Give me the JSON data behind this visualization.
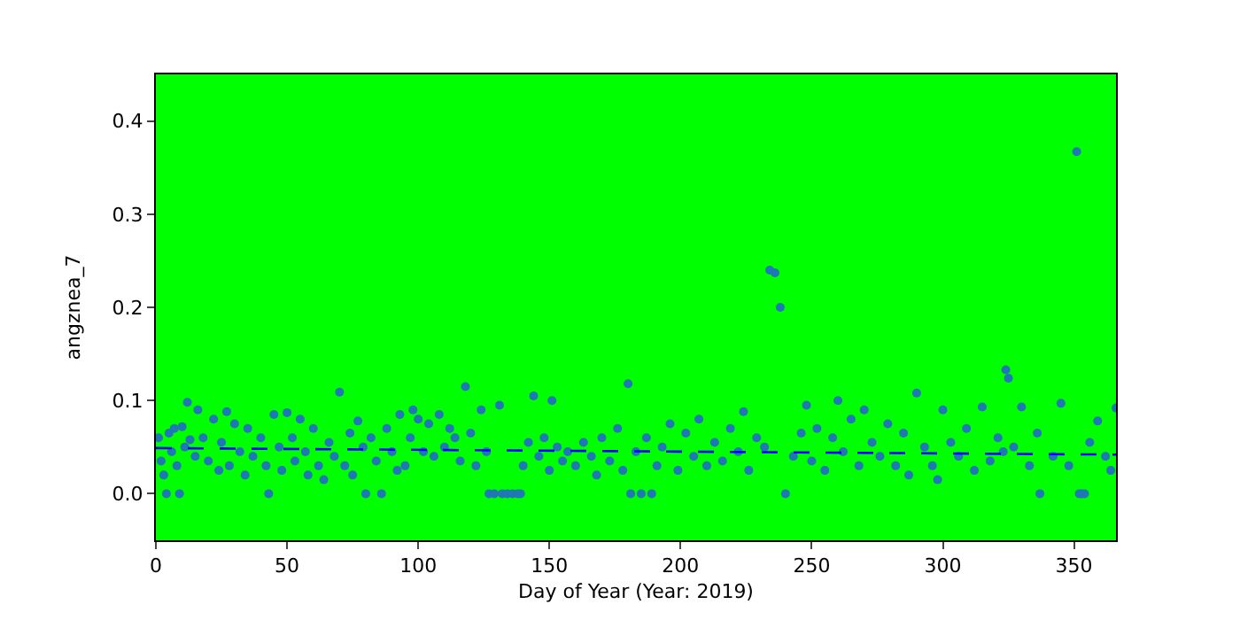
{
  "chart_data": {
    "type": "scatter",
    "xlabel": "Day of Year (Year: 2019)",
    "ylabel": "angznea_7",
    "xlim": [
      0,
      366
    ],
    "ylim": [
      -0.05,
      0.45
    ],
    "xticks": [
      0,
      50,
      100,
      150,
      200,
      250,
      300,
      350
    ],
    "yticks": [
      {
        "value": 0,
        "label": "0.0"
      },
      0.1,
      0.2,
      0.3,
      0.4
    ],
    "grid": false,
    "marker": "circle",
    "series": [
      {
        "color": "#1f77b4",
        "x": [
          1,
          2,
          3,
          4,
          5,
          6,
          7,
          8,
          9,
          10,
          11,
          12,
          13,
          15,
          16,
          18,
          20,
          22,
          24,
          25,
          27,
          28,
          30,
          32,
          34,
          35,
          37,
          40,
          42,
          43,
          45,
          47,
          48,
          50,
          52,
          53,
          55,
          57,
          58,
          60,
          62,
          64,
          66,
          68,
          70,
          72,
          74,
          75,
          77,
          79,
          80,
          82,
          84,
          86,
          88,
          90,
          92,
          93,
          95,
          97,
          98,
          100,
          102,
          104,
          106,
          108,
          110,
          112,
          114,
          116,
          118,
          120,
          122,
          124,
          126,
          127,
          129,
          131,
          132,
          134,
          136,
          138,
          139,
          140,
          142,
          144,
          146,
          148,
          150,
          151,
          153,
          155,
          157,
          160,
          163,
          166,
          168,
          170,
          173,
          176,
          178,
          180,
          181,
          183,
          185,
          187,
          189,
          191,
          193,
          196,
          199,
          202,
          205,
          207,
          210,
          213,
          216,
          219,
          222,
          224,
          226,
          229,
          232,
          234,
          236,
          238,
          240,
          243,
          246,
          248,
          250,
          252,
          255,
          258,
          260,
          262,
          265,
          268,
          270,
          273,
          276,
          279,
          282,
          285,
          287,
          290,
          293,
          296,
          298,
          300,
          303,
          306,
          309,
          312,
          315,
          318,
          321,
          323,
          324,
          325,
          327,
          330,
          333,
          336,
          337,
          342,
          345,
          348,
          351,
          352,
          353,
          354,
          356,
          359,
          362,
          364,
          366
        ],
        "values": [
          0.06,
          0.035,
          0.02,
          0.0,
          0.065,
          0.045,
          0.07,
          0.03,
          0.0,
          0.072,
          0.05,
          0.098,
          0.058,
          0.04,
          0.09,
          0.06,
          0.035,
          0.08,
          0.025,
          0.055,
          0.088,
          0.03,
          0.075,
          0.045,
          0.02,
          0.07,
          0.04,
          0.06,
          0.03,
          0.0,
          0.085,
          0.05,
          0.025,
          0.087,
          0.06,
          0.035,
          0.08,
          0.045,
          0.02,
          0.07,
          0.03,
          0.015,
          0.055,
          0.04,
          0.109,
          0.03,
          0.065,
          0.02,
          0.078,
          0.05,
          0.0,
          0.06,
          0.035,
          0.0,
          0.07,
          0.045,
          0.025,
          0.085,
          0.03,
          0.06,
          0.09,
          0.08,
          0.045,
          0.075,
          0.04,
          0.085,
          0.05,
          0.07,
          0.06,
          0.035,
          0.115,
          0.065,
          0.03,
          0.09,
          0.045,
          0.0,
          0.0,
          0.095,
          0.0,
          0.0,
          0.0,
          0.0,
          0.0,
          0.03,
          0.055,
          0.105,
          0.04,
          0.06,
          0.025,
          0.1,
          0.05,
          0.035,
          0.045,
          0.03,
          0.055,
          0.04,
          0.02,
          0.06,
          0.035,
          0.07,
          0.025,
          0.118,
          0.0,
          0.045,
          0.0,
          0.06,
          0.0,
          0.03,
          0.05,
          0.075,
          0.025,
          0.065,
          0.04,
          0.08,
          0.03,
          0.055,
          0.035,
          0.07,
          0.045,
          0.088,
          0.025,
          0.06,
          0.05,
          0.24,
          0.237,
          0.2,
          0.0,
          0.04,
          0.065,
          0.095,
          0.035,
          0.07,
          0.025,
          0.06,
          0.1,
          0.045,
          0.08,
          0.03,
          0.09,
          0.055,
          0.04,
          0.075,
          0.03,
          0.065,
          0.02,
          0.108,
          0.05,
          0.03,
          0.015,
          0.09,
          0.055,
          0.04,
          0.07,
          0.025,
          0.093,
          0.035,
          0.06,
          0.045,
          0.133,
          0.124,
          0.05,
          0.093,
          0.03,
          0.065,
          0.0,
          0.04,
          0.097,
          0.03,
          0.367,
          0.0,
          0.0,
          0.0,
          0.055,
          0.078,
          0.04,
          0.025,
          0.092
        ]
      },
      {
        "type": "line",
        "color": "#0000ff",
        "line_style": "dashed",
        "marker": "none",
        "x": [
          0,
          366
        ],
        "values": [
          0.049,
          0.042
        ]
      }
    ]
  }
}
